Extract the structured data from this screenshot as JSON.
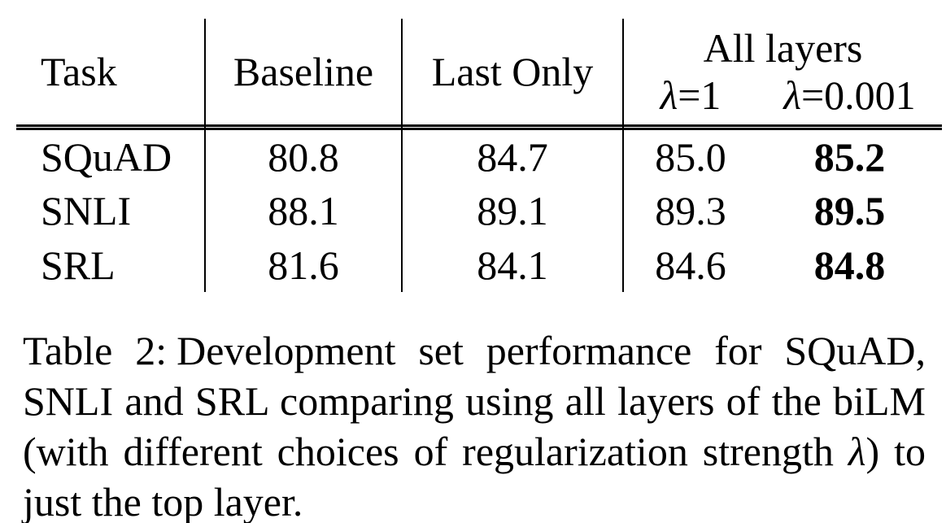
{
  "table": {
    "header": {
      "task": "Task",
      "baseline": "Baseline",
      "last_only": "Last Only",
      "all_layers_label": "All layers",
      "lambda1_sym": "λ",
      "lambda1_eq": "=1",
      "lambda0001_sym": "λ",
      "lambda0001_eq": "=0.001"
    },
    "rows": [
      {
        "task": "SQuAD",
        "baseline": "80.8",
        "last_only": "84.7",
        "lambda1": "85.0",
        "lambda0001": "85.2"
      },
      {
        "task": "SNLI",
        "baseline": "88.1",
        "last_only": "89.1",
        "lambda1": "89.3",
        "lambda0001": "89.5"
      },
      {
        "task": "SRL",
        "baseline": "81.6",
        "last_only": "84.1",
        "lambda1": "84.6",
        "lambda0001": "84.8"
      }
    ]
  },
  "caption": {
    "line1_prefix": "Table 2:",
    "line1_rest": "Development set performance for SQuAD,",
    "line2": "SNLI and SRL comparing using all layers of the biLM",
    "line3a": "(with different choices of regularization strength ",
    "line3_sym": "λ",
    "line3b": ") to",
    "line4": "just the top layer."
  },
  "colors": {
    "text": "#000000",
    "background": "#ffffff",
    "rule": "#000000"
  }
}
